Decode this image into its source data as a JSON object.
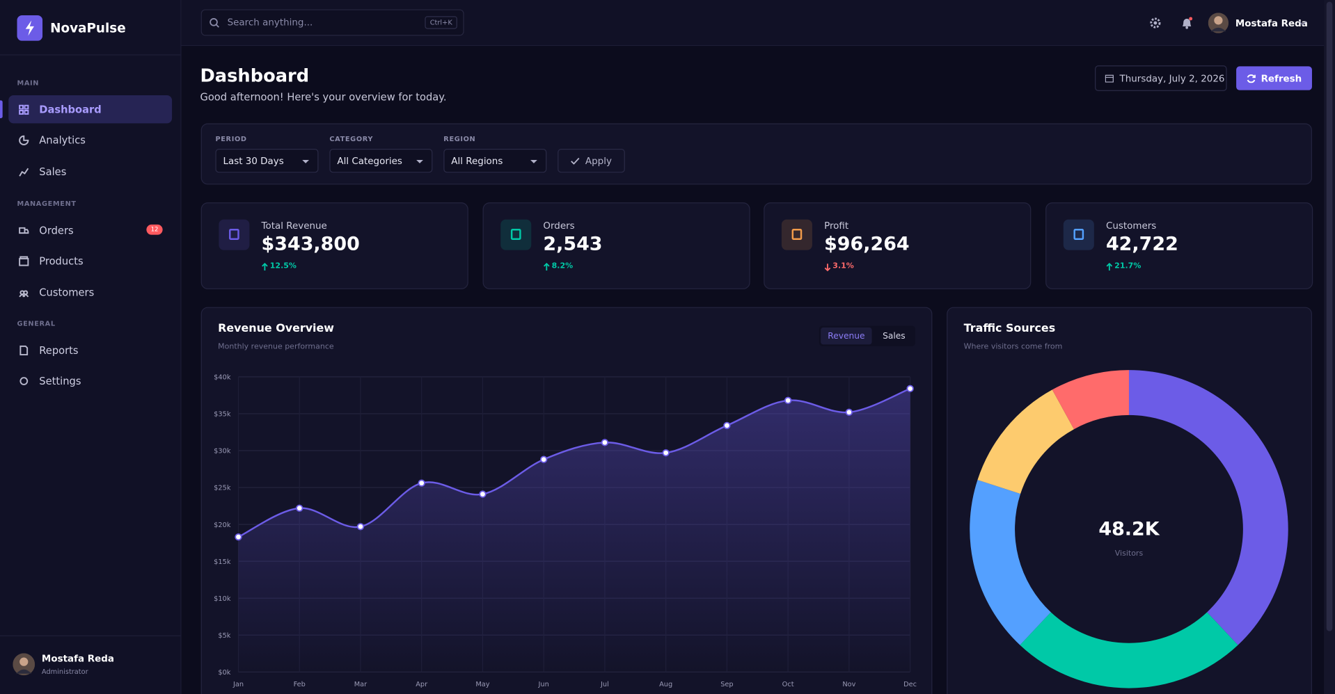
{
  "brand": "NovaPulse",
  "search": {
    "placeholder": "Search anything...",
    "shortcut": "Ctrl+K"
  },
  "sidebar": {
    "sections": [
      {
        "title": "MAIN",
        "items": [
          {
            "label": "Dashboard",
            "active": true
          },
          {
            "label": "Analytics"
          },
          {
            "label": "Sales"
          }
        ]
      },
      {
        "title": "MANAGEMENT",
        "items": [
          {
            "label": "Orders",
            "badge": "12"
          },
          {
            "label": "Products"
          },
          {
            "label": "Customers"
          }
        ]
      },
      {
        "title": "GENERAL",
        "items": [
          {
            "label": "Reports"
          },
          {
            "label": "Settings"
          }
        ]
      }
    ],
    "user": {
      "name": "Mostafa Reda",
      "role": "Administrator"
    }
  },
  "topbar": {
    "user": "Mostafa Reda"
  },
  "header": {
    "title": "Dashboard",
    "subtitle": "Good afternoon! Here's your overview for today.",
    "date": "Thursday, July 2, 2026",
    "refresh": "Refresh"
  },
  "filters": {
    "fields": [
      {
        "label": "PERIOD",
        "value": "Last 30 Days"
      },
      {
        "label": "CATEGORY",
        "value": "All Categories"
      },
      {
        "label": "REGION",
        "value": "All Regions"
      }
    ],
    "apply": "Apply"
  },
  "kpis": [
    {
      "label": "Total Revenue",
      "value": "$343,800",
      "change": "12.5%",
      "trend": "up",
      "color": "#6c5ce7"
    },
    {
      "label": "Orders",
      "value": "2,543",
      "change": "8.2%",
      "trend": "up",
      "color": "#00c9a7"
    },
    {
      "label": "Profit",
      "value": "$96,264",
      "change": "3.1%",
      "trend": "down",
      "color": "#f39c4a"
    },
    {
      "label": "Customers",
      "value": "42,722",
      "change": "21.7%",
      "trend": "up",
      "color": "#54a0ff"
    }
  ],
  "chart_data": [
    {
      "type": "line",
      "title": "Revenue Overview",
      "subtitle": "Monthly revenue performance",
      "tabs": [
        "Revenue",
        "Sales"
      ],
      "categories": [
        "Jan",
        "Feb",
        "Mar",
        "Apr",
        "May",
        "Jun",
        "Jul",
        "Aug",
        "Sep",
        "Oct",
        "Nov",
        "Dec"
      ],
      "values": [
        18.3,
        22.2,
        19.7,
        25.6,
        24.1,
        28.8,
        31.1,
        29.7,
        33.4,
        36.8,
        35.2,
        38.4
      ],
      "color": "#6c5ce7",
      "ylim": [
        0,
        40
      ],
      "yticks": [
        {
          "value": 0,
          "label": "$0k"
        },
        {
          "value": 5,
          "label": "$5k"
        },
        {
          "value": 10,
          "label": "$10k"
        },
        {
          "value": 15,
          "label": "$15k"
        },
        {
          "value": 20,
          "label": "$20k"
        },
        {
          "value": 25,
          "label": "$25k"
        },
        {
          "value": 30,
          "label": "$30k"
        },
        {
          "value": 35,
          "label": "$35k"
        },
        {
          "value": 40,
          "label": "$40k"
        }
      ],
      "grid": true
    },
    {
      "type": "pie",
      "title": "Traffic Sources",
      "subtitle": "Where visitors come from",
      "values": [
        38,
        24,
        18,
        12,
        8
      ],
      "colors": [
        "#6c5ce7",
        "#00c9a7",
        "#54a0ff",
        "#fdcb6e",
        "#ff6b6b"
      ],
      "center_value": "48.2K",
      "center_label": "Visitors"
    }
  ]
}
